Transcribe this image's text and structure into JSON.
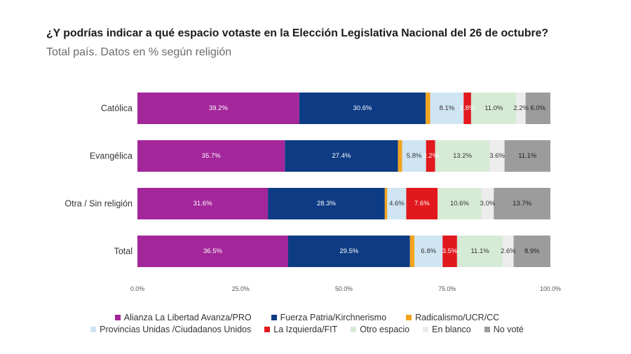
{
  "chart_data": {
    "type": "bar",
    "horizontal": true,
    "stacked": true,
    "title": "¿Y podrías indicar a qué espacio votaste en la Elección Legislativa Nacional del 26 de octubre?",
    "subtitle": "Total país. Datos en % según religión",
    "categories": [
      "Católica",
      "Evangélica",
      "Otra / Sin religión",
      "Total"
    ],
    "series": [
      {
        "name": "Alianza La Libertad Avanza/PRO",
        "color": "#a4269b",
        "label_color": "#ffffff",
        "values": [
          39.2,
          35.7,
          31.6,
          36.5
        ],
        "labels": [
          "39.2%",
          "35.7%",
          "31.6%",
          "36.5%"
        ]
      },
      {
        "name": "Fuerza Patria/Kirchnerismo",
        "color": "#0d3b84",
        "label_color": "#ffffff",
        "values": [
          30.6,
          27.4,
          28.3,
          29.5
        ],
        "labels": [
          "30.6%",
          "27.4%",
          "28.3%",
          "29.5%"
        ]
      },
      {
        "name": "Radicalismo/UCR/CC",
        "color": "#f2a31f",
        "values": [
          1.1,
          1.0,
          0.6,
          1.1
        ]
      },
      {
        "name": "Provincias Unidas /Ciudadanos Unidos",
        "color": "#cfe5f3",
        "label_color": "#333333",
        "values": [
          8.1,
          5.8,
          4.6,
          6.8
        ],
        "labels": [
          "8.1%",
          "5.8%",
          "4.6%",
          "6.8%"
        ]
      },
      {
        "name": "La Izquierda/FIT",
        "color": "#e1181d",
        "label_color": "#ffffff",
        "values": [
          1.8,
          2.2,
          7.6,
          3.5
        ],
        "labels": [
          "1.8%",
          "2.2%",
          "7.6%",
          "3.5%"
        ]
      },
      {
        "name": "Otro espacio",
        "color": "#d6ebd5",
        "label_color": "#333333",
        "values": [
          11.0,
          13.2,
          10.6,
          11.1
        ],
        "labels": [
          "11.0%",
          "13.2%",
          "10.6%",
          "11.1%"
        ]
      },
      {
        "name": "En blanco",
        "color": "#ececec",
        "label_color": "#333333",
        "values": [
          2.2,
          3.6,
          3.0,
          2.6
        ],
        "labels": [
          "2.2%",
          "3.6%",
          "3.0%",
          "2.6%"
        ]
      },
      {
        "name": "No voté",
        "color": "#9c9c9c",
        "label_color": "#222222",
        "values": [
          6.0,
          11.1,
          13.7,
          8.9
        ],
        "labels": [
          "6.0%",
          "11.1%",
          "13.7%",
          "8.9%"
        ]
      }
    ],
    "xlim": [
      0,
      100
    ],
    "x_ticks": [
      0,
      25,
      50,
      75,
      100
    ],
    "x_tick_labels": [
      "0.0%",
      "25.0%",
      "50.0%",
      "75.0%",
      "100.0%"
    ],
    "grid": false,
    "legend_position": "bottom"
  }
}
